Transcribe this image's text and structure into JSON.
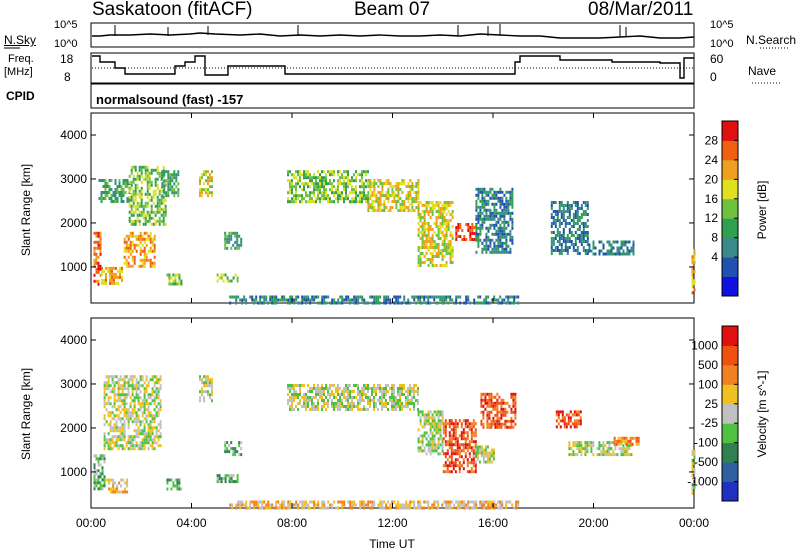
{
  "header": {
    "title": "Saskatoon (fitACF)",
    "beam": "Beam 07",
    "date": "08/Mar/2011"
  },
  "top_panels": {
    "nsky_label": "N.Sky",
    "nsky_ticks": [
      "10^5",
      "10^0"
    ],
    "nsearch_label": "N.Search",
    "freq_label_1": "Freq.",
    "freq_label_2": "[MHz]",
    "freq_ticks": [
      "18",
      "8"
    ],
    "nave_ticks": [
      "60",
      "0"
    ],
    "nave_label": "Nave",
    "cpid_label": "CPID",
    "cpid_text": "normalsound (fast) -157"
  },
  "chart_data": [
    {
      "type": "heatmap",
      "name": "power",
      "ylabel": "Slant Range [km]",
      "ylim": [
        180,
        4500
      ],
      "yticks": [
        1000,
        2000,
        3000,
        4000
      ],
      "xlim": [
        0,
        24
      ],
      "colorbar": {
        "label": "Power [dB]",
        "ticks": [
          "28",
          "24",
          "20",
          "16",
          "12",
          "8",
          "4"
        ],
        "colors": [
          "#1010e0",
          "#2050b0",
          "#3a8a8a",
          "#2ea050",
          "#70c040",
          "#e0e020",
          "#f0a020",
          "#f06010",
          "#e01010"
        ]
      },
      "patches": [
        {
          "t0": 0.1,
          "t1": 0.4,
          "r0": 600,
          "r1": 1800,
          "level": 7
        },
        {
          "t0": 0.4,
          "t1": 1.2,
          "r0": 600,
          "r1": 1000,
          "level": 6
        },
        {
          "t0": 1.3,
          "t1": 2.5,
          "r0": 1000,
          "r1": 1800,
          "level": 6
        },
        {
          "t0": 0.3,
          "t1": 1.5,
          "r0": 2500,
          "r1": 3000,
          "level": 3
        },
        {
          "t0": 1.5,
          "t1": 3.0,
          "r0": 2000,
          "r1": 3300,
          "level": 4
        },
        {
          "t0": 2.8,
          "t1": 3.5,
          "r0": 2600,
          "r1": 3200,
          "level": 3
        },
        {
          "t0": 3.0,
          "t1": 3.6,
          "r0": 600,
          "r1": 850,
          "level": 4
        },
        {
          "t0": 4.3,
          "t1": 4.8,
          "r0": 2600,
          "r1": 3200,
          "level": 5
        },
        {
          "t0": 5.0,
          "t1": 5.8,
          "r0": 650,
          "r1": 850,
          "level": 4
        },
        {
          "t0": 5.3,
          "t1": 6.0,
          "r0": 1400,
          "r1": 1800,
          "level": 3
        },
        {
          "t0": 7.8,
          "t1": 11.0,
          "r0": 2500,
          "r1": 3200,
          "level": 4
        },
        {
          "t0": 11.0,
          "t1": 13.0,
          "r0": 2300,
          "r1": 3000,
          "level": 5
        },
        {
          "t0": 13.0,
          "t1": 14.4,
          "r0": 1000,
          "r1": 2500,
          "level": 5
        },
        {
          "t0": 14.5,
          "t1": 15.3,
          "r0": 1600,
          "r1": 2000,
          "level": 8
        },
        {
          "t0": 15.3,
          "t1": 16.8,
          "r0": 1300,
          "r1": 2800,
          "level": 2
        },
        {
          "t0": 18.3,
          "t1": 19.8,
          "r0": 1300,
          "r1": 2500,
          "level": 2
        },
        {
          "t0": 19.8,
          "t1": 21.6,
          "r0": 1300,
          "r1": 1600,
          "level": 2
        },
        {
          "t0": 23.9,
          "t1": 24.0,
          "r0": 400,
          "r1": 1400,
          "level": 6
        },
        {
          "t0": 5.5,
          "t1": 17.0,
          "r0": 200,
          "r1": 350,
          "level": 2
        }
      ]
    },
    {
      "type": "heatmap",
      "name": "velocity",
      "ylabel": "Slant Range [km]",
      "xlabel": "Time UT",
      "xlim": [
        0,
        24
      ],
      "xticks": [
        "00:00",
        "04:00",
        "08:00",
        "12:00",
        "16:00",
        "20:00",
        "00:00"
      ],
      "ylim": [
        180,
        4500
      ],
      "yticks": [
        1000,
        2000,
        3000,
        4000
      ],
      "colorbar": {
        "label": "Velocity [m s^-1]",
        "ticks": [
          "1000",
          "500",
          "100",
          "25",
          "-25",
          "-100",
          "-500",
          "-1000"
        ],
        "colors": [
          "#2030c0",
          "#3060a0",
          "#308050",
          "#50c040",
          "#c0c0c0",
          "#f0c020",
          "#f08020",
          "#f05010",
          "#e01010"
        ]
      },
      "patches": [
        {
          "t0": 0.1,
          "t1": 0.5,
          "r0": 600,
          "r1": 1400,
          "level": 3
        },
        {
          "t0": 0.6,
          "t1": 1.4,
          "r0": 550,
          "r1": 850,
          "level": 5
        },
        {
          "t0": 0.5,
          "t1": 2.8,
          "r0": 1500,
          "r1": 3200,
          "level": 4
        },
        {
          "t0": 3.0,
          "t1": 3.6,
          "r0": 600,
          "r1": 850,
          "level": 3
        },
        {
          "t0": 4.3,
          "t1": 4.8,
          "r0": 2600,
          "r1": 3200,
          "level": 4
        },
        {
          "t0": 5.0,
          "t1": 5.8,
          "r0": 750,
          "r1": 950,
          "level": 3
        },
        {
          "t0": 5.3,
          "t1": 6.0,
          "r0": 1400,
          "r1": 1700,
          "level": 3
        },
        {
          "t0": 7.8,
          "t1": 13.0,
          "r0": 2400,
          "r1": 3000,
          "level": 4
        },
        {
          "t0": 13.0,
          "t1": 14.0,
          "r0": 1400,
          "r1": 2400,
          "level": 4
        },
        {
          "t0": 14.0,
          "t1": 15.3,
          "r0": 1000,
          "r1": 2200,
          "level": 7
        },
        {
          "t0": 15.5,
          "t1": 16.9,
          "r0": 2000,
          "r1": 2800,
          "level": 7
        },
        {
          "t0": 15.2,
          "t1": 16.0,
          "r0": 1200,
          "r1": 1600,
          "level": 4
        },
        {
          "t0": 18.5,
          "t1": 19.5,
          "r0": 2000,
          "r1": 2400,
          "level": 7
        },
        {
          "t0": 19.0,
          "t1": 21.5,
          "r0": 1400,
          "r1": 1700,
          "level": 4
        },
        {
          "t0": 20.8,
          "t1": 21.8,
          "r0": 1600,
          "r1": 1800,
          "level": 6
        },
        {
          "t0": 23.9,
          "t1": 24.0,
          "r0": 500,
          "r1": 1500,
          "level": 4
        },
        {
          "t0": 5.5,
          "t1": 17.0,
          "r0": 200,
          "r1": 350,
          "level": 5
        }
      ]
    }
  ]
}
